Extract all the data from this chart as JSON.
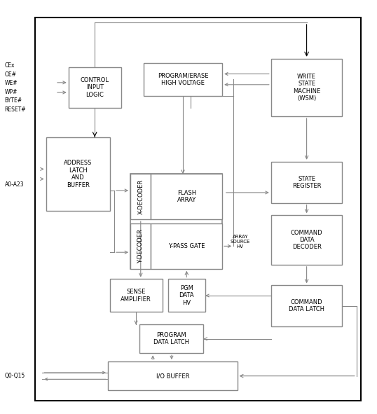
{
  "fig_width": 5.38,
  "fig_height": 5.91,
  "bg": "#ffffff",
  "ec": "#888888",
  "tc": "#000000",
  "ac": "#888888",
  "dac": "#000000",
  "fs": 6.0,
  "fss": 5.5,
  "outer": [
    0.09,
    0.03,
    0.87,
    0.93
  ],
  "cil": [
    0.18,
    0.74,
    0.14,
    0.1
  ],
  "peh": [
    0.38,
    0.77,
    0.21,
    0.08
  ],
  "wsm": [
    0.72,
    0.72,
    0.19,
    0.14
  ],
  "alb": [
    0.12,
    0.49,
    0.17,
    0.18
  ],
  "xd": [
    0.345,
    0.47,
    0.055,
    0.11
  ],
  "yd": [
    0.345,
    0.35,
    0.055,
    0.11
  ],
  "fa": [
    0.4,
    0.47,
    0.19,
    0.11
  ],
  "ypg": [
    0.4,
    0.35,
    0.19,
    0.11
  ],
  "sr": [
    0.72,
    0.51,
    0.19,
    0.1
  ],
  "cdd": [
    0.72,
    0.36,
    0.19,
    0.12
  ],
  "sa": [
    0.29,
    0.245,
    0.14,
    0.08
  ],
  "pdh": [
    0.445,
    0.245,
    0.1,
    0.08
  ],
  "cdl": [
    0.72,
    0.21,
    0.19,
    0.1
  ],
  "pdl": [
    0.37,
    0.145,
    0.17,
    0.07
  ],
  "iob": [
    0.285,
    0.055,
    0.345,
    0.07
  ]
}
